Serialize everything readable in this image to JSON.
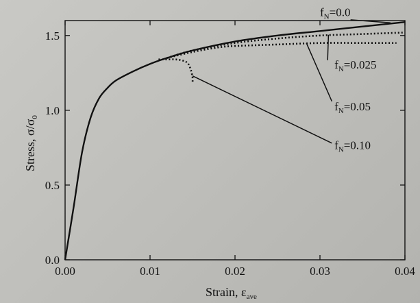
{
  "chart_data": {
    "type": "line",
    "xlabel": "Strain, ε",
    "xlabel_sub": "ave",
    "ylabel": "Stress, σ/σ",
    "ylabel_sub": "0",
    "xlim": [
      0,
      0.04
    ],
    "ylim": [
      0,
      1.6
    ],
    "x_ticks": [
      "0.00",
      "0.01",
      "0.02",
      "0.03",
      "0.04"
    ],
    "y_ticks": [
      "0.0",
      "0.5",
      "1.0",
      "1.5"
    ],
    "grid": false,
    "series": [
      {
        "label_base": "f",
        "label_sub": "N",
        "label_value": "=0.0",
        "style": "solid",
        "x": [
          0,
          0.001,
          0.002,
          0.003,
          0.004,
          0.005,
          0.006,
          0.008,
          0.01,
          0.012,
          0.015,
          0.02,
          0.025,
          0.03,
          0.035,
          0.04
        ],
        "y": [
          0,
          0.35,
          0.72,
          0.95,
          1.08,
          1.15,
          1.2,
          1.26,
          1.31,
          1.35,
          1.4,
          1.46,
          1.5,
          1.53,
          1.56,
          1.59
        ]
      },
      {
        "label_base": "f",
        "label_sub": "N",
        "label_value": "=0.025",
        "style": "dotted",
        "x": [
          0.012,
          0.015,
          0.02,
          0.025,
          0.03,
          0.035,
          0.04
        ],
        "y": [
          1.35,
          1.4,
          1.45,
          1.48,
          1.5,
          1.51,
          1.52
        ]
      },
      {
        "label_base": "f",
        "label_sub": "N",
        "label_value": "=0.05",
        "style": "dotted",
        "x": [
          0.012,
          0.015,
          0.018,
          0.02,
          0.025,
          0.03,
          0.035,
          0.039
        ],
        "y": [
          1.35,
          1.39,
          1.42,
          1.43,
          1.44,
          1.45,
          1.45,
          1.45
        ]
      },
      {
        "label_base": "f",
        "label_sub": "N",
        "label_value": "=0.10",
        "style": "dotted",
        "x": [
          0.011,
          0.012,
          0.013,
          0.014,
          0.0145,
          0.0148,
          0.015,
          0.015
        ],
        "y": [
          1.34,
          1.34,
          1.34,
          1.33,
          1.31,
          1.27,
          1.22,
          1.18
        ]
      }
    ]
  }
}
